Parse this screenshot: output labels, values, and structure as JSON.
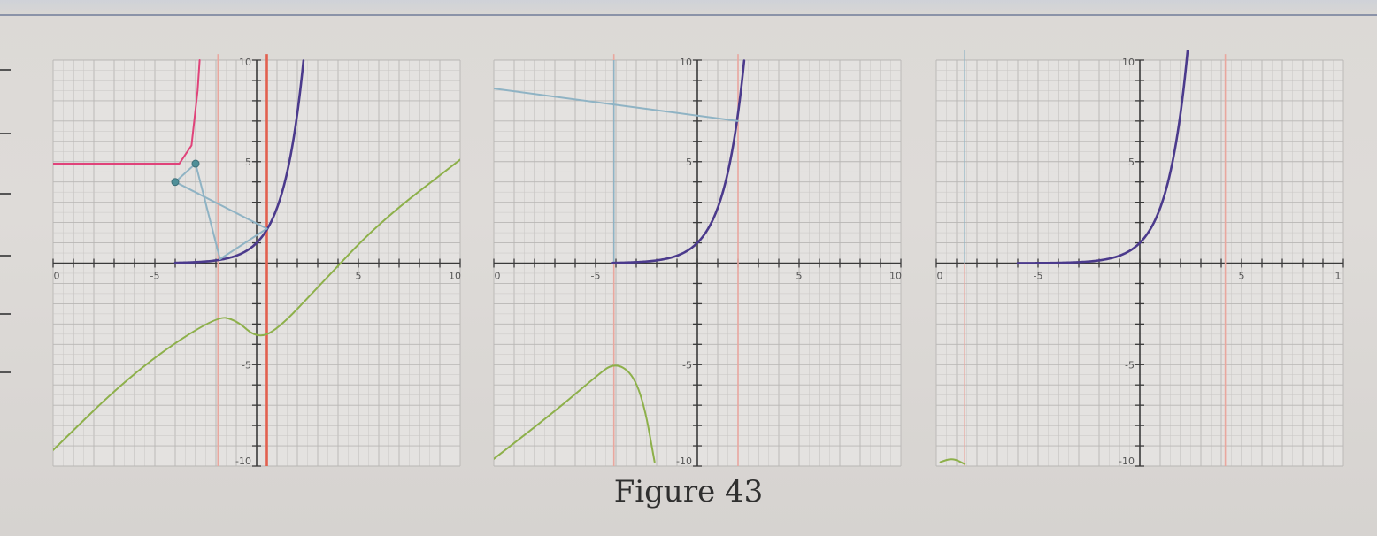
{
  "figure": {
    "caption": "Figure 43"
  },
  "colors": {
    "grid": "#c9c6c4",
    "grid_major": "#b8b6b4",
    "axis": "#3a3a3a",
    "exp_curve": "#4b3a8c",
    "green_curve": "#8db04a",
    "red_line": "#e2604f",
    "faint_red": "#e9a79e",
    "teal_line": "#8fb3c4",
    "magenta": "#e0437a"
  },
  "chart_data": [
    {
      "type": "line",
      "panel": "left",
      "xlim": [
        -10,
        10
      ],
      "ylim": [
        -10,
        10
      ],
      "grid": true,
      "x_tick_labels": [
        "0",
        "-5",
        "5",
        "10"
      ],
      "y_tick_labels": [
        "10",
        "5",
        "-5",
        "-10"
      ],
      "series": [
        {
          "kind": "exp",
          "color": "exp_curve",
          "points": [
            [
              -4,
              0.02
            ],
            [
              -2,
              0.14
            ],
            [
              0,
              1
            ],
            [
              1,
              2.72
            ],
            [
              2,
              7.39
            ],
            [
              2.3,
              10
            ]
          ]
        },
        {
          "kind": "green",
          "color": "green_curve",
          "points": [
            [
              -10.5,
              -9.7
            ],
            [
              -6,
              -5.3
            ],
            [
              -2,
              -2.6
            ],
            [
              -1,
              -2.8
            ],
            [
              0,
              -3.7
            ],
            [
              1,
              -3.3
            ],
            [
              3,
              -1.2
            ],
            [
              6,
              2
            ],
            [
              10,
              5.1
            ]
          ]
        },
        {
          "kind": "magenta",
          "color": "magenta",
          "points": [
            [
              -10,
              4.9
            ],
            [
              -3.8,
              4.9
            ],
            [
              -3.2,
              5.8
            ],
            [
              -2.9,
              8.5
            ],
            [
              -2.8,
              10
            ]
          ]
        },
        {
          "kind": "teal",
          "color": "teal_line",
          "points": [
            [
              -4,
              4
            ],
            [
              0.5,
              1.7
            ]
          ]
        },
        {
          "kind": "teal",
          "color": "teal_line",
          "points": [
            [
              -4,
              4
            ],
            [
              -3,
              4.9
            ],
            [
              -1.8,
              0.2
            ]
          ]
        },
        {
          "kind": "teal",
          "color": "teal_line",
          "points": [
            [
              -1.8,
              0.2
            ],
            [
              0.5,
              1.7
            ]
          ]
        }
      ],
      "vertical_lines": [
        {
          "x": 0.5,
          "color": "red_line"
        },
        {
          "x": -1.9,
          "color": "faint_red"
        }
      ],
      "markers": [
        [
          -4,
          4
        ],
        [
          -3,
          4.9
        ]
      ]
    },
    {
      "type": "line",
      "panel": "middle",
      "xlim": [
        -10,
        10
      ],
      "ylim": [
        -10,
        10
      ],
      "grid": true,
      "x_tick_labels": [
        "0",
        "-5",
        "5",
        "10"
      ],
      "y_tick_labels": [
        "10",
        "5",
        "-5",
        "-10"
      ],
      "series": [
        {
          "kind": "exp",
          "color": "exp_curve",
          "points": [
            [
              -4.2,
              0.02
            ],
            [
              -2,
              0.14
            ],
            [
              0,
              1
            ],
            [
              1,
              2.72
            ],
            [
              2,
              7.39
            ],
            [
              2.3,
              10
            ]
          ]
        },
        {
          "kind": "green",
          "color": "green_curve",
          "points": [
            [
              -10.2,
              -9.8
            ],
            [
              -7,
              -7.3
            ],
            [
              -5,
              -5.6
            ],
            [
              -4.1,
              -4.9
            ],
            [
              -3.2,
              -5.4
            ],
            [
              -2.6,
              -7
            ],
            [
              -2.1,
              -9.8
            ]
          ]
        },
        {
          "kind": "teal",
          "color": "teal_line",
          "points": [
            [
              -10,
              8.6
            ],
            [
              2,
              7
            ]
          ]
        }
      ],
      "vertical_lines": [
        {
          "x": -4.1,
          "color": "faint_red"
        },
        {
          "x": -4.1,
          "color": "teal_line",
          "y_from": 0,
          "y_to": 10
        },
        {
          "x": 2,
          "color": "faint_red"
        }
      ],
      "markers": []
    },
    {
      "type": "line",
      "panel": "right",
      "xlim": [
        -10,
        10
      ],
      "ylim": [
        -10,
        10
      ],
      "grid": true,
      "x_tick_labels": [
        "0",
        "-5",
        "5",
        "1"
      ],
      "y_tick_labels": [
        "10",
        "5",
        "-5",
        "-10"
      ],
      "series": [
        {
          "kind": "exp",
          "color": "exp_curve",
          "points": [
            [
              -6,
              0.0
            ],
            [
              -3,
              0.05
            ],
            [
              -1,
              0.37
            ],
            [
              0,
              1
            ],
            [
              1,
              2.72
            ],
            [
              2,
              7.39
            ],
            [
              2.35,
              10.5
            ]
          ]
        },
        {
          "kind": "green",
          "color": "green_curve",
          "points": [
            [
              -9.8,
              -9.8
            ],
            [
              -9.2,
              -9.6
            ],
            [
              -8.6,
              -9.9
            ]
          ]
        }
      ],
      "vertical_lines": [
        {
          "x": -8.6,
          "color": "teal_line",
          "y_from": 0,
          "y_to": 10.5
        },
        {
          "x": -8.6,
          "color": "faint_red",
          "y_from": -10,
          "y_to": 0
        },
        {
          "x": 4.2,
          "color": "faint_red"
        }
      ],
      "markers": []
    }
  ]
}
